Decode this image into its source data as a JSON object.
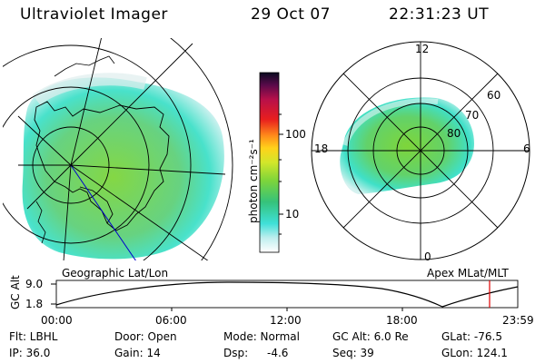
{
  "header": {
    "title": "Ultraviolet Imager",
    "date": "29 Oct 07",
    "time": "22:31:23 UT"
  },
  "colorbar": {
    "unit_label": "photon cm⁻²s⁻¹",
    "ticks": [
      "100",
      "10"
    ]
  },
  "left_panel": {
    "caption": "Geographic Lat/Lon"
  },
  "right_panel": {
    "caption": "Apex MLat/MLT",
    "mlt_labels": [
      "12",
      "18",
      "6",
      "0"
    ],
    "mlat_labels": [
      "60",
      "70",
      "80"
    ]
  },
  "altitude_plot": {
    "ylabel": "GC Alt",
    "yticks": [
      "9.0",
      "1.8"
    ],
    "xticks": [
      "00:00",
      "06:00",
      "12:00",
      "18:00",
      "23:59"
    ]
  },
  "status": {
    "filter": "Flt: LBHL",
    "door": "Door: Open",
    "mode": "Mode: Normal",
    "gc_alt": "GC Alt: 6.0 Re",
    "glat": "GLat: -76.5",
    "ip": "IP: 36.0",
    "gain": "Gain: 14",
    "dsp_label": "Dsp:",
    "dsp_value": "-4.6",
    "seq": "Seq: 39",
    "glon": "GLon: 124.1"
  }
}
